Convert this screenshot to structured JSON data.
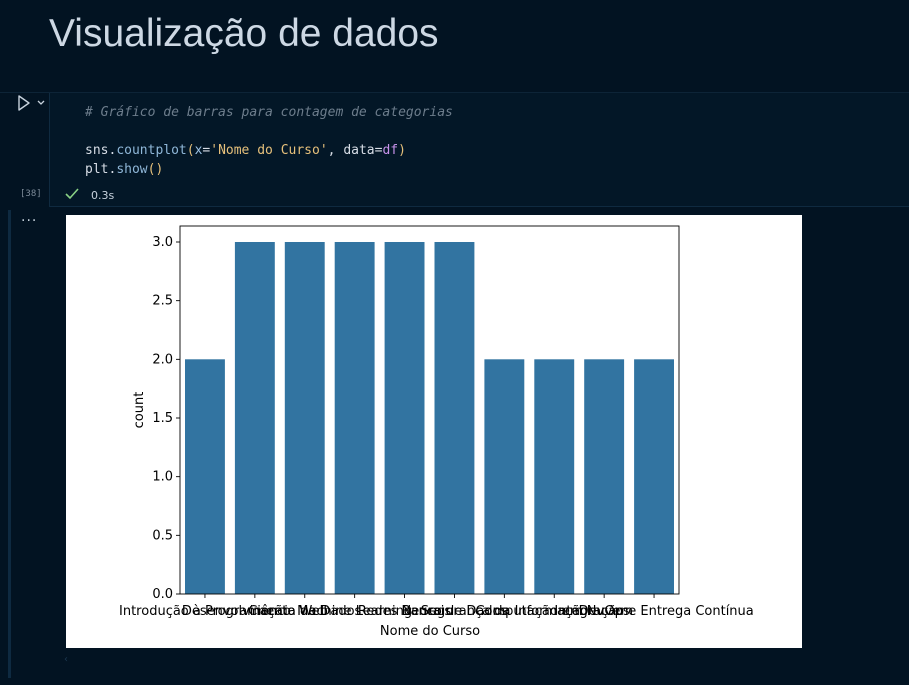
{
  "markdown": {
    "title": "Visualização de dados"
  },
  "cell": {
    "execution_count": "[38]",
    "exec_time": "0.3s",
    "code": {
      "comment": "# Gráfico de barras para contagem de categorias",
      "line2": {
        "obj": "sns",
        "dot": ".",
        "fn": "countplot",
        "open": "(",
        "kw1": "x",
        "eq1": "=",
        "str1": "'Nome do Curso'",
        "comma": ", ",
        "kw2": "data",
        "eq2": "=",
        "var": "df",
        "close": ")"
      },
      "line3": {
        "obj": "plt",
        "dot": ".",
        "fn": "show",
        "parens": "()"
      }
    },
    "output_menu": "···"
  },
  "chart_data": {
    "type": "bar",
    "title": "",
    "xlabel": "Nome do Curso",
    "ylabel": "count",
    "ylim": [
      0,
      3.0
    ],
    "yticks": [
      "0.0",
      "0.5",
      "1.0",
      "1.5",
      "2.0",
      "2.5",
      "3.0"
    ],
    "ytick_values": [
      0,
      0.5,
      1.0,
      1.5,
      2.0,
      2.5,
      3.0
    ],
    "bar_color": "#3274a1",
    "categories": [
      "Introdução à Programação",
      "Desenvolvimento Web",
      "Ciência de Dados",
      "Machine Learning",
      "Redes Neurais",
      "Banco de Dados",
      "Segurança da Informação",
      "Computação em Nuvem",
      "DevOps",
      "Integração e Entrega Contínua"
    ],
    "values": [
      2,
      3,
      3,
      3,
      3,
      3,
      2,
      2,
      2,
      2
    ],
    "visible_tick_fragments": {
      "left": "Introdução à Programação",
      "right": "Integração e Entrega Contínua",
      "overlap": "Desenvolvimento Web"
    }
  }
}
